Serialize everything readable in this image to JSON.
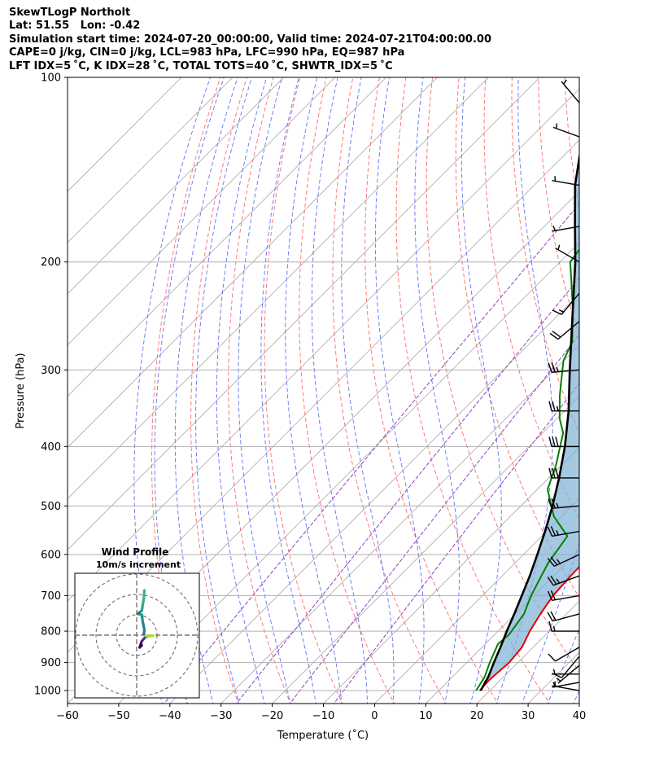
{
  "header": {
    "lines": [
      "SkewTLogP Northolt",
      "Lat: 51.55   Lon: -0.42",
      "Simulation start time: 2024-07-20_00:00:00, Valid time: 2024-07-21T04:00:00.00",
      "CAPE=0 j/kg, CIN=0 j/kg, LCL=983 hPa, LFC=990 hPa, EQ=987 hPa",
      "LFT IDX=5 ˚C, K IDX=28 ˚C, TOTAL TOTS=40 ˚C, SHWTR_IDX=5 ˚C"
    ]
  },
  "chart_data": {
    "type": "line",
    "xlabel": "Temperature (˚C)",
    "ylabel": "Pressure (hPa)",
    "xlim": [
      -60,
      40
    ],
    "ylim": [
      1050,
      100
    ],
    "yscale": "log",
    "skew": "45deg",
    "x_ticks": [
      "−60",
      "−50",
      "−40",
      "−30",
      "−20",
      "−10",
      "0",
      "10",
      "20",
      "30",
      "40"
    ],
    "y_ticks": [
      "1000",
      "900",
      "800",
      "700",
      "600",
      "500",
      "400",
      "300",
      "200",
      "100"
    ],
    "y_tick_values": [
      1000,
      900,
      800,
      700,
      600,
      500,
      400,
      300,
      200,
      100
    ],
    "colors": {
      "temperature": "#e00000",
      "dewpoint": "#008000",
      "parcel": "#000000",
      "cape_fill": "#7fb0d5",
      "dry_adiabat": "#ff5050",
      "moist_adiabat": "#3a4ff5",
      "mixing_ratio": "#9040c0",
      "isotherm": "#a8a8a8",
      "barb": "#000000"
    },
    "series": [
      {
        "key": "temperature",
        "points": [
          [
            18,
            1000
          ],
          [
            17.8,
            960
          ],
          [
            18.3,
            900
          ],
          [
            17.8,
            850
          ],
          [
            16.2,
            800
          ],
          [
            14.9,
            750
          ],
          [
            13.8,
            700
          ],
          [
            13.4,
            650
          ],
          [
            13.2,
            600
          ],
          [
            12.2,
            550
          ],
          [
            10.8,
            500
          ],
          [
            8.8,
            450
          ],
          [
            4.2,
            400
          ],
          [
            -1.8,
            350
          ],
          [
            -6,
            320
          ],
          [
            -9.6,
            300
          ],
          [
            -11,
            270
          ],
          [
            -13.5,
            250
          ],
          [
            -16,
            225
          ],
          [
            -18.5,
            200
          ],
          [
            -21,
            185
          ],
          [
            -23.5,
            160
          ],
          [
            -26,
            150
          ],
          [
            -30,
            130
          ],
          [
            -36,
            115
          ],
          [
            -40,
            100
          ]
        ]
      },
      {
        "key": "dewpoint",
        "points": [
          [
            17.3,
            1000
          ],
          [
            16.3,
            950
          ],
          [
            14.5,
            900
          ],
          [
            12.5,
            840
          ],
          [
            12.8,
            810
          ],
          [
            11.7,
            750
          ],
          [
            9.5,
            700
          ],
          [
            6.5,
            620
          ],
          [
            5,
            560
          ],
          [
            -1.5,
            520
          ],
          [
            -8,
            470
          ],
          [
            -11,
            430
          ],
          [
            -16,
            380
          ],
          [
            -19.5,
            360
          ],
          [
            -24,
            330
          ],
          [
            -30,
            290
          ],
          [
            -32,
            270
          ],
          [
            -38,
            240
          ],
          [
            -44,
            215
          ],
          [
            -48,
            200
          ],
          [
            -49,
            185
          ],
          [
            -54,
            160
          ],
          [
            -56,
            150
          ],
          [
            -60,
            130
          ],
          [
            -64,
            115
          ],
          [
            -68,
            100
          ]
        ]
      },
      {
        "key": "parcel",
        "points": [
          [
            18.2,
            1000
          ],
          [
            17,
            950
          ],
          [
            15.3,
            900
          ],
          [
            13.6,
            850
          ],
          [
            11.7,
            800
          ],
          [
            9.8,
            750
          ],
          [
            7.7,
            700
          ],
          [
            5.4,
            650
          ],
          [
            2.7,
            600
          ],
          [
            -0.3,
            550
          ],
          [
            -3.8,
            500
          ],
          [
            -8,
            450
          ],
          [
            -13,
            400
          ],
          [
            -19.2,
            350
          ],
          [
            -27,
            300
          ],
          [
            -36,
            250
          ],
          [
            -47,
            200
          ],
          [
            -54,
            175
          ],
          [
            -62,
            150
          ],
          [
            -70,
            125
          ],
          [
            -79,
            100
          ]
        ]
      }
    ],
    "wind_barbs": [
      {
        "p": 1000,
        "speed_kt": 5,
        "dir": 280
      },
      {
        "p": 970,
        "speed_kt": 5,
        "dir": 260
      },
      {
        "p": 940,
        "speed_kt": 5,
        "dir": 270
      },
      {
        "p": 910,
        "speed_kt": 5,
        "dir": 230
      },
      {
        "p": 880,
        "speed_kt": 10,
        "dir": 220
      },
      {
        "p": 850,
        "speed_kt": 10,
        "dir": 240
      },
      {
        "p": 800,
        "speed_kt": 15,
        "dir": 270
      },
      {
        "p": 750,
        "speed_kt": 20,
        "dir": 255
      },
      {
        "p": 700,
        "speed_kt": 20,
        "dir": 260
      },
      {
        "p": 650,
        "speed_kt": 25,
        "dir": 250
      },
      {
        "p": 600,
        "speed_kt": 25,
        "dir": 245
      },
      {
        "p": 550,
        "speed_kt": 25,
        "dir": 260
      },
      {
        "p": 500,
        "speed_kt": 25,
        "dir": 265
      },
      {
        "p": 450,
        "speed_kt": 30,
        "dir": 270
      },
      {
        "p": 400,
        "speed_kt": 30,
        "dir": 270
      },
      {
        "p": 350,
        "speed_kt": 25,
        "dir": 270
      },
      {
        "p": 300,
        "speed_kt": 25,
        "dir": 265
      },
      {
        "p": 250,
        "speed_kt": 20,
        "dir": 230
      },
      {
        "p": 225,
        "speed_kt": 15,
        "dir": 220
      },
      {
        "p": 200,
        "speed_kt": 5,
        "dir": 300
      },
      {
        "p": 175,
        "speed_kt": 5,
        "dir": 260
      },
      {
        "p": 150,
        "speed_kt": 5,
        "dir": 280
      },
      {
        "p": 125,
        "speed_kt": 5,
        "dir": 290
      },
      {
        "p": 110,
        "speed_kt": 5,
        "dir": 320
      }
    ]
  },
  "inset": {
    "title": "Wind Profile",
    "subtitle": "10m/s increment",
    "rings": 3,
    "ring_increment_ms": 10,
    "hodograph": [
      {
        "u": 2.5,
        "v": -5,
        "color": "#3b1c5a"
      },
      {
        "u": 1.5,
        "v": -6,
        "color": "#440154"
      },
      {
        "u": 2.5,
        "v": -3,
        "color": "#46327e"
      },
      {
        "u": 4.2,
        "v": -1,
        "color": "#3e4a89"
      },
      {
        "u": 5.5,
        "v": -0.5,
        "color": "#addc30"
      },
      {
        "u": 8,
        "v": -0.3,
        "color": "#addc30"
      },
      {
        "u": 4.5,
        "v": -0.3,
        "color": "#b5de2b"
      },
      {
        "u": 3.5,
        "v": 0.5,
        "color": "#2f6b8e"
      },
      {
        "u": 3.8,
        "v": 2.5,
        "color": "#26828e"
      },
      {
        "u": 3,
        "v": 6.5,
        "color": "#21918c"
      },
      {
        "u": 2.5,
        "v": 10,
        "color": "#1f9e89"
      },
      {
        "u": 0.5,
        "v": 10.5,
        "color": "#2a788e"
      },
      {
        "u": 2.5,
        "v": 12,
        "color": "#22a884"
      },
      {
        "u": 3,
        "v": 15,
        "color": "#2db27d"
      },
      {
        "u": 3.5,
        "v": 18,
        "color": "#35b779"
      },
      {
        "u": 3.8,
        "v": 22,
        "color": "#3ebc74"
      }
    ]
  }
}
